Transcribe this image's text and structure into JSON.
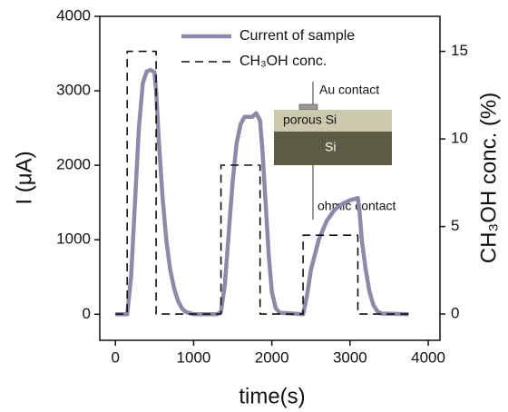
{
  "chart_data": {
    "type": "line",
    "x_label": "time(s)",
    "y_label": "I (μA)",
    "y2_label": "CH₃OH conc. (%)",
    "xlim": [
      -200,
      4150
    ],
    "xticks": [
      0,
      1000,
      2000,
      3000,
      4000
    ],
    "ylim": [
      -350,
      4000
    ],
    "yticks": [
      0,
      1000,
      2000,
      3000,
      4000
    ],
    "y2lim": [
      -1.5,
      17
    ],
    "y2ticks": [
      0,
      5,
      10,
      15
    ],
    "legend": "upper-center",
    "series": [
      {
        "name": "Current of sample",
        "color": "#8c8aa8",
        "axis": "y",
        "x": [
          0,
          150,
          200,
          250,
          300,
          350,
          400,
          450,
          500,
          520,
          550,
          600,
          650,
          700,
          750,
          800,
          850,
          900,
          1000,
          1300,
          1350,
          1400,
          1450,
          1500,
          1550,
          1600,
          1650,
          1700,
          1750,
          1800,
          1850,
          1880,
          1920,
          1960,
          2000,
          2050,
          2100,
          2400,
          2450,
          2500,
          2600,
          2700,
          2800,
          2900,
          3000,
          3100,
          3120,
          3150,
          3200,
          3250,
          3300,
          3350,
          3400,
          3750
        ],
        "values": [
          0,
          0,
          500,
          1500,
          2500,
          3100,
          3260,
          3280,
          3250,
          3000,
          2400,
          1600,
          1000,
          600,
          350,
          180,
          80,
          30,
          0,
          0,
          30,
          400,
          1100,
          1800,
          2300,
          2550,
          2650,
          2650,
          2650,
          2700,
          2600,
          2200,
          1500,
          800,
          300,
          80,
          20,
          0,
          250,
          600,
          1000,
          1250,
          1400,
          1480,
          1530,
          1560,
          1400,
          1000,
          600,
          300,
          120,
          40,
          10,
          0
        ]
      },
      {
        "name": "CH₃OH conc.",
        "color": "#111111",
        "axis": "y2",
        "dashed": true,
        "x": [
          0,
          150,
          150,
          520,
          520,
          1350,
          1350,
          1850,
          1850,
          2400,
          2400,
          3100,
          3100,
          3750
        ],
        "values": [
          0,
          0,
          15,
          15,
          0,
          0,
          8.5,
          8.5,
          0,
          0,
          4.5,
          4.5,
          0,
          0
        ]
      }
    ],
    "annotations": [
      "Au contact",
      "porous Si",
      "Si",
      "ohmic contact"
    ]
  }
}
